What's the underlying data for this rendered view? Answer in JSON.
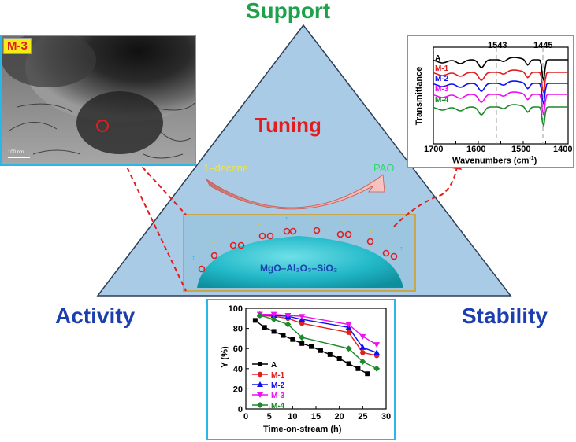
{
  "titles": {
    "support": "Support",
    "activity": "Activity",
    "stability": "Stability",
    "tuning": "Tuning"
  },
  "reaction": {
    "reactant": "1–decene",
    "product": "PAO",
    "catalyst": "MgO–Al₂O₃–SiO₂"
  },
  "tem": {
    "label": "M-3",
    "scale_bar": "100 nm"
  },
  "ir": {
    "ylabel": "Transmittance",
    "xlabel": "Wavenumbers (cm",
    "xlabel_sup": "-1",
    "xlabel_end": ")",
    "ticks": [
      "1700",
      "1600",
      "1500",
      "1400"
    ],
    "peaks": [
      "1543",
      "1445"
    ],
    "series": [
      "A",
      "M-1",
      "M-2",
      "M-3",
      "M-4"
    ]
  },
  "colors": {
    "A": "#000000",
    "M-1": "#e31d1d",
    "M-2": "#1010ee",
    "M-3": "#ee10ee",
    "M-4": "#1a8a2a",
    "frame": "#2bb6e8",
    "triangle": "#a9cbe6"
  },
  "chart_data": {
    "type": "line",
    "xlabel": "Time-on-stream (h)",
    "ylabel": "Y (%)",
    "xlim": [
      0,
      30
    ],
    "ylim": [
      0,
      100
    ],
    "xticks": [
      0,
      5,
      10,
      15,
      20,
      25,
      30
    ],
    "yticks": [
      0,
      20,
      40,
      60,
      80,
      100
    ],
    "series": [
      {
        "name": "A",
        "x": [
          2,
          4,
          6,
          8,
          10,
          12,
          14,
          16,
          18,
          20,
          22,
          24,
          26
        ],
        "values": [
          88,
          81,
          77,
          73,
          69,
          65,
          62,
          58,
          54,
          50,
          45,
          40,
          35
        ]
      },
      {
        "name": "M-1",
        "x": [
          3,
          6,
          9,
          12,
          22,
          25,
          28
        ],
        "values": [
          93,
          92,
          90,
          85,
          76,
          56,
          53
        ]
      },
      {
        "name": "M-2",
        "x": [
          3,
          6,
          9,
          12,
          22,
          25,
          28
        ],
        "values": [
          94,
          93,
          92,
          89,
          81,
          61,
          56
        ]
      },
      {
        "name": "M-3",
        "x": [
          3,
          6,
          9,
          12,
          22,
          25,
          28
        ],
        "values": [
          94,
          94,
          93,
          92,
          84,
          72,
          64
        ]
      },
      {
        "name": "M-4",
        "x": [
          3,
          6,
          9,
          12,
          22,
          25,
          28
        ],
        "values": [
          93,
          89,
          84,
          71,
          60,
          47,
          40
        ]
      }
    ]
  }
}
